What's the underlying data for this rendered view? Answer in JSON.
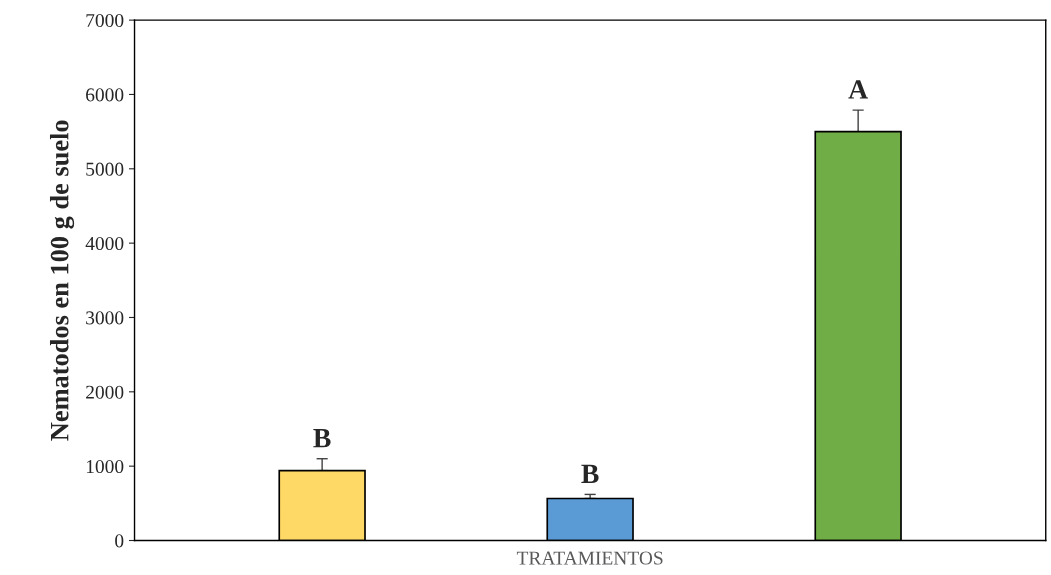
{
  "chart_data": {
    "type": "bar",
    "categories": [
      null,
      null,
      null
    ],
    "values": [
      940,
      565,
      5500
    ],
    "colors": [
      "#ffd966",
      "#5b9bd5",
      "#70ad47"
    ],
    "errors": [
      [
        940,
        1100
      ],
      [
        565,
        620
      ],
      [
        5500,
        5790
      ]
    ],
    "xlabel": "TRATAMIENTOS",
    "ylabel": "Nematodos en 100 g de suelo",
    "ylim": [
      0,
      7000
    ],
    "yticks": [
      0,
      1000,
      2000,
      3000,
      4000,
      5000,
      6000,
      7000
    ],
    "annotations": [
      {
        "text": "B",
        "y": 1100
      },
      {
        "text": "B",
        "y": 620
      },
      {
        "text": "A",
        "y": 5790
      }
    ],
    "grid": false,
    "legend": false
  }
}
